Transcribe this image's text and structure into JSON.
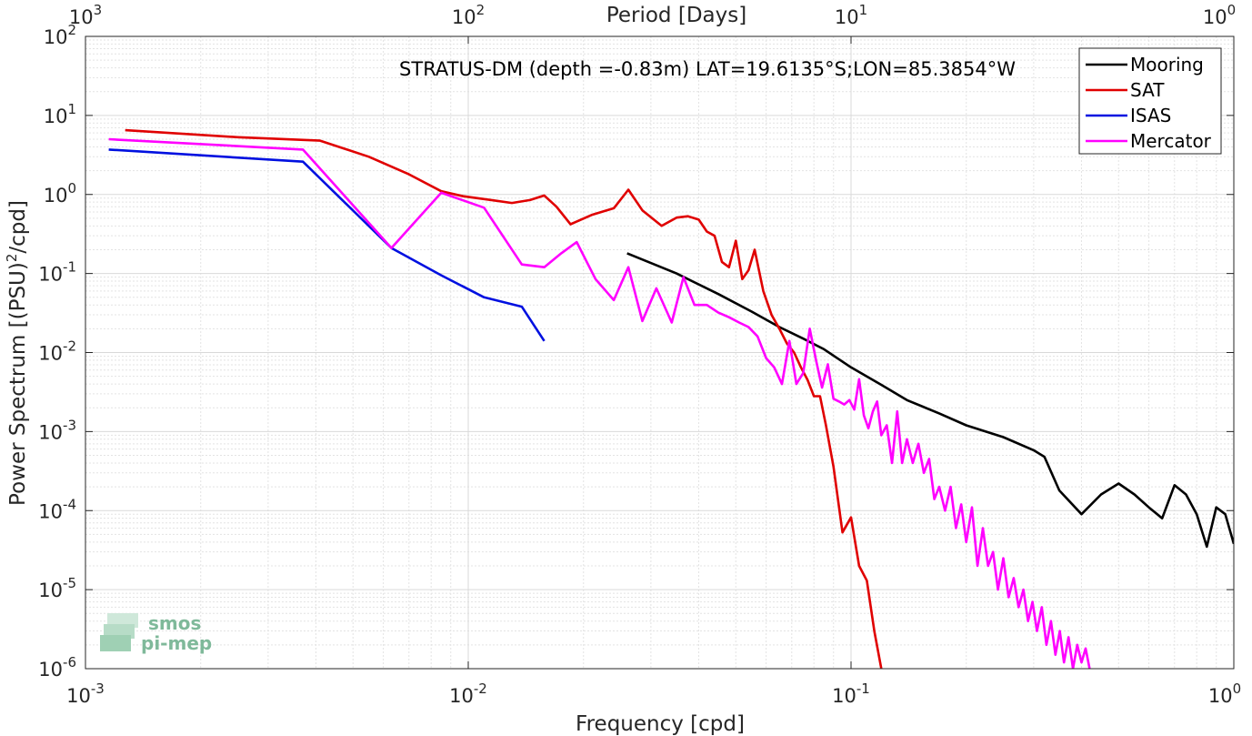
{
  "chart_data": {
    "type": "line",
    "title": "",
    "annotation": "STRATUS-DM (depth =-0.83m) LAT=19.6135°S;LON=85.3854°W",
    "xlabel": "Frequency [cpd]",
    "ylabel_main": "Power Spectrum [(PSU)",
    "ylabel_sup": "2",
    "ylabel_end": "/cpd]",
    "x2label": "Period [Days]",
    "xscale": "log",
    "yscale": "log",
    "xlim": [
      0.001,
      1
    ],
    "ylim": [
      1e-06,
      100
    ],
    "grid": true,
    "legend_position": "top-right",
    "x_ticks": [
      {
        "value": 0.001,
        "base": "10",
        "exp": "-3"
      },
      {
        "value": 0.01,
        "base": "10",
        "exp": "-2"
      },
      {
        "value": 0.1,
        "base": "10",
        "exp": "-1"
      },
      {
        "value": 1,
        "base": "10",
        "exp": "0"
      }
    ],
    "y_ticks": [
      {
        "value": 1e-06,
        "base": "10",
        "exp": "-6"
      },
      {
        "value": 1e-05,
        "base": "10",
        "exp": "-5"
      },
      {
        "value": 0.0001,
        "base": "10",
        "exp": "-4"
      },
      {
        "value": 0.001,
        "base": "10",
        "exp": "-3"
      },
      {
        "value": 0.01,
        "base": "10",
        "exp": "-2"
      },
      {
        "value": 0.1,
        "base": "10",
        "exp": "-1"
      },
      {
        "value": 1,
        "base": "10",
        "exp": "0"
      },
      {
        "value": 10,
        "base": "10",
        "exp": "1"
      },
      {
        "value": 100,
        "base": "10",
        "exp": "2"
      }
    ],
    "x2_ticks": [
      {
        "value": 0.001,
        "base": "10",
        "exp": "3"
      },
      {
        "value": 0.01,
        "base": "10",
        "exp": "2"
      },
      {
        "value": 0.1,
        "base": "10",
        "exp": "1"
      },
      {
        "value": 1,
        "base": "10",
        "exp": "0"
      }
    ],
    "series": [
      {
        "name": "Mooring",
        "color": "#000000",
        "x": [
          0.026,
          0.035,
          0.045,
          0.055,
          0.065,
          0.075,
          0.085,
          0.1,
          0.12,
          0.14,
          0.17,
          0.2,
          0.25,
          0.3,
          0.32,
          0.35,
          0.4,
          0.45,
          0.5,
          0.55,
          0.6,
          0.65,
          0.7,
          0.75,
          0.8,
          0.85,
          0.9,
          0.95,
          1.0
        ],
        "y": [
          0.18,
          0.1,
          0.055,
          0.033,
          0.021,
          0.015,
          0.011,
          0.0065,
          0.0039,
          0.0025,
          0.0017,
          0.0012,
          0.00085,
          0.00058,
          0.00048,
          0.00018,
          9e-05,
          0.00016,
          0.00022,
          0.00016,
          0.00011,
          8e-05,
          0.00021,
          0.00016,
          9e-05,
          3.5e-05,
          0.00011,
          9e-05,
          3.8e-05
        ]
      },
      {
        "name": "SAT",
        "color": "#e00000",
        "x": [
          0.00127,
          0.0025,
          0.0041,
          0.0055,
          0.007,
          0.0085,
          0.0097,
          0.0115,
          0.013,
          0.0145,
          0.0158,
          0.017,
          0.0185,
          0.021,
          0.024,
          0.0262,
          0.0285,
          0.032,
          0.035,
          0.0375,
          0.04,
          0.042,
          0.044,
          0.046,
          0.048,
          0.05,
          0.052,
          0.054,
          0.056,
          0.059,
          0.062,
          0.065,
          0.068,
          0.071,
          0.074,
          0.077,
          0.08,
          0.083,
          0.086,
          0.09,
          0.095,
          0.1,
          0.105,
          0.11,
          0.115,
          0.12
        ],
        "y": [
          6.5,
          5.3,
          4.8,
          3.0,
          1.8,
          1.1,
          0.95,
          0.85,
          0.78,
          0.85,
          0.97,
          0.7,
          0.42,
          0.55,
          0.67,
          1.15,
          0.63,
          0.4,
          0.51,
          0.53,
          0.48,
          0.34,
          0.3,
          0.14,
          0.12,
          0.26,
          0.085,
          0.11,
          0.2,
          0.06,
          0.03,
          0.02,
          0.013,
          0.01,
          0.0065,
          0.0045,
          0.0028,
          0.0028,
          0.0012,
          0.00036,
          5.3e-05,
          8.2e-05,
          2e-05,
          1.3e-05,
          3e-06,
          1e-06
        ]
      },
      {
        "name": "ISAS",
        "color": "#0010e0",
        "x": [
          0.00115,
          0.0037,
          0.0063,
          0.0085,
          0.011,
          0.0138,
          0.0158
        ],
        "y": [
          3.7,
          2.6,
          0.21,
          0.095,
          0.05,
          0.038,
          0.014
        ]
      },
      {
        "name": "Mercator",
        "color": "#ff00ff",
        "x": [
          0.00115,
          0.0037,
          0.0063,
          0.0085,
          0.011,
          0.0138,
          0.0158,
          0.0175,
          0.0192,
          0.0215,
          0.024,
          0.0262,
          0.0285,
          0.031,
          0.034,
          0.0365,
          0.039,
          0.042,
          0.045,
          0.048,
          0.051,
          0.054,
          0.057,
          0.06,
          0.063,
          0.066,
          0.069,
          0.072,
          0.075,
          0.078,
          0.081,
          0.084,
          0.087,
          0.09,
          0.093,
          0.096,
          0.099,
          0.102,
          0.105,
          0.108,
          0.111,
          0.114,
          0.117,
          0.12,
          0.124,
          0.128,
          0.132,
          0.136,
          0.14,
          0.145,
          0.15,
          0.155,
          0.16,
          0.165,
          0.17,
          0.176,
          0.182,
          0.188,
          0.194,
          0.2,
          0.207,
          0.214,
          0.221,
          0.228,
          0.235,
          0.242,
          0.25,
          0.258,
          0.266,
          0.274,
          0.282,
          0.29,
          0.298,
          0.306,
          0.315,
          0.324,
          0.333,
          0.342,
          0.351,
          0.36,
          0.37,
          0.38,
          0.39,
          0.4,
          0.41,
          0.42
        ],
        "y": [
          5.0,
          3.7,
          0.21,
          1.05,
          0.68,
          0.13,
          0.12,
          0.18,
          0.25,
          0.085,
          0.046,
          0.12,
          0.025,
          0.065,
          0.024,
          0.09,
          0.04,
          0.04,
          0.032,
          0.028,
          0.024,
          0.021,
          0.016,
          0.0085,
          0.0065,
          0.004,
          0.014,
          0.004,
          0.0055,
          0.02,
          0.008,
          0.0036,
          0.0071,
          0.0026,
          0.0024,
          0.0022,
          0.0025,
          0.0019,
          0.0046,
          0.0016,
          0.0011,
          0.0018,
          0.0024,
          0.0009,
          0.0012,
          0.0004,
          0.0018,
          0.0004,
          0.0008,
          0.0004,
          0.0007,
          0.0003,
          0.00045,
          0.00014,
          0.0002,
          0.0001,
          0.0002,
          6e-05,
          0.00012,
          4e-05,
          0.00011,
          2e-05,
          6e-05,
          2e-05,
          3e-05,
          1e-05,
          2.5e-05,
          8e-06,
          1.4e-05,
          6e-06,
          1e-05,
          4e-06,
          7e-06,
          3e-06,
          6e-06,
          2e-06,
          4e-06,
          1.5e-06,
          3e-06,
          1.2e-06,
          2.5e-06,
          1e-06,
          2e-06,
          1.2e-06,
          1.8e-06,
          1e-06
        ]
      }
    ]
  },
  "watermark": {
    "line1": "smos",
    "line2": "pi-mep"
  }
}
